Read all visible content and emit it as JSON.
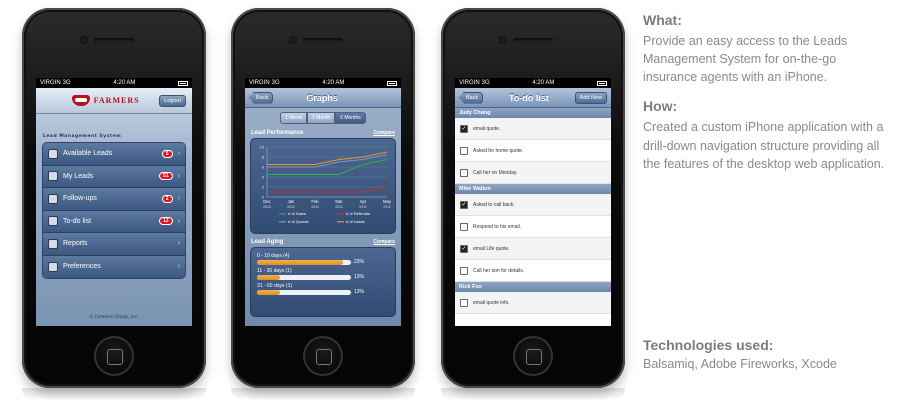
{
  "status": {
    "carrier": "VIRGIN",
    "network": "3G",
    "time": "4:20 AM"
  },
  "screen1": {
    "logo_text": "FARMERS",
    "logout_label": "Logout",
    "section_label": "Lead Management System",
    "menu": [
      {
        "label": "Available Leads",
        "badge": "5",
        "icon": "leads-icon"
      },
      {
        "label": "My Leads",
        "badge": "51",
        "icon": "my-leads-icon"
      },
      {
        "label": "Follow-ups",
        "badge": "2",
        "icon": "follow-ups-icon"
      },
      {
        "label": "To-do list",
        "badge": "12",
        "icon": "todo-icon"
      },
      {
        "label": "Reports",
        "badge": "",
        "icon": "reports-icon"
      },
      {
        "label": "Preferences",
        "badge": "",
        "icon": "gear-icon"
      }
    ],
    "footer": "© Farmers Group, Inc."
  },
  "screen2": {
    "back_label": "Back",
    "title": "Graphs",
    "segments": [
      "1 Week",
      "1 Month",
      "6 Months"
    ],
    "active_segment": 2,
    "performance_title": "Lead Performance",
    "compare_label": "Compare",
    "aging_title": "Lead Aging",
    "aging": [
      {
        "label": "0 - 10 days (4)",
        "pct_text": "23%",
        "pct": 0.92
      },
      {
        "label": "11 - 30 days (1)",
        "pct_text": "13%",
        "pct": 0.24
      },
      {
        "label": "31 - 60 days (1)",
        "pct_text": "13%",
        "pct": 0.24
      }
    ]
  },
  "chart_data": {
    "type": "line",
    "categories": [
      "Dec 2010",
      "Jan 2011",
      "Feb 2011",
      "Mar 2011",
      "Apr 2011",
      "May 2011"
    ],
    "cat_top": [
      "Dec",
      "Jan",
      "Feb",
      "Mar",
      "Apr",
      "May"
    ],
    "cat_bottom": [
      "2010",
      "2011",
      "2011",
      "2011",
      "2011",
      "2011"
    ],
    "yticks": [
      "10",
      "8",
      "6",
      "4",
      "2",
      "0"
    ],
    "ylim": [
      0,
      10
    ],
    "series": [
      {
        "name": "# of Sales",
        "color": "#2db34a",
        "values": [
          4.5,
          4.5,
          4.5,
          4.5,
          6.5,
          7.5
        ]
      },
      {
        "name": "# of Referrals",
        "color": "#d42a2a",
        "values": [
          1,
          1,
          1,
          1,
          1,
          2
        ]
      },
      {
        "name": "# of Quotes",
        "color": "#7f97bd",
        "values": [
          6,
          6,
          6,
          7,
          7.5,
          8.5
        ]
      },
      {
        "name": "# of Leads",
        "color": "#f0932a",
        "values": [
          6.5,
          6.5,
          6.5,
          7.5,
          8,
          9
        ]
      }
    ]
  },
  "screen3": {
    "back_label": "Back",
    "title": "To-do list",
    "add_label": "Add New",
    "groups": [
      {
        "name": "Judy Chang",
        "items": [
          {
            "text": "email quote.",
            "checked": true
          },
          {
            "text": "Asked for home quote.",
            "checked": false
          },
          {
            "text": "Call her on Monday.",
            "checked": false
          }
        ]
      },
      {
        "name": "Mike Walton",
        "items": [
          {
            "text": "Asked to call back.",
            "checked": true
          },
          {
            "text": "Respond to his email.",
            "checked": false
          },
          {
            "text": "email Life quote.",
            "checked": true
          },
          {
            "text": "Call her son for details.",
            "checked": false
          }
        ]
      },
      {
        "name": "Rick Fox",
        "items": [
          {
            "text": "email quote info.",
            "checked": false
          }
        ]
      }
    ]
  },
  "info": {
    "what_title": "What:",
    "what_text": "Provide an easy access to the Leads Management System for on-the-go insurance agents with an iPhone.",
    "how_title": "How:",
    "how_text": "Created a custom iPhone application with a drill-down navigation structure providing all the features of the desktop web application.",
    "tech_title": "Technologies used:",
    "tech_text": "Balsamiq, Adobe Fireworks, Xcode"
  }
}
